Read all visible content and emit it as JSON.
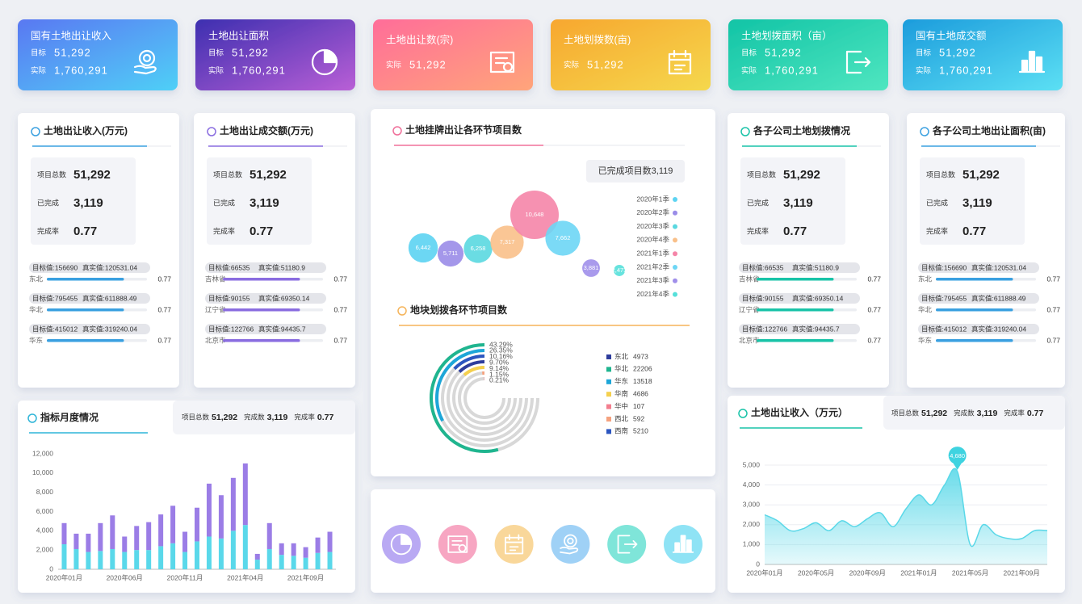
{
  "cards": [
    {
      "title": "国有土地出让收入",
      "rows": [
        {
          "label": "目标",
          "value": "51,292"
        },
        {
          "label": "实际",
          "value": "1,760,291"
        }
      ]
    },
    {
      "title": "土地出让面积",
      "rows": [
        {
          "label": "目标",
          "value": "51,292"
        },
        {
          "label": "实际",
          "value": "1,760,291"
        }
      ]
    },
    {
      "title": "土地出让数(宗)",
      "rows": [
        {
          "label": "实际",
          "value": "51,292"
        }
      ]
    },
    {
      "title": "土地划拨数(亩)",
      "rows": [
        {
          "label": "实际",
          "value": "51,292"
        }
      ]
    },
    {
      "title": "土地划拨面积（亩）",
      "rows": [
        {
          "label": "目标",
          "value": "51,292"
        },
        {
          "label": "实际",
          "value": "1,760,291"
        }
      ]
    },
    {
      "title": "国有土地成交额",
      "rows": [
        {
          "label": "目标",
          "value": "51,292"
        },
        {
          "label": "实际",
          "value": "1,760,291"
        }
      ]
    }
  ],
  "panels": [
    {
      "title": "土地出让收入(万元)",
      "color": "#3aa0e0",
      "stats": [
        {
          "label": "项目总数",
          "value": "51,292"
        },
        {
          "label": "已完成",
          "value": "3,119"
        },
        {
          "label": "完成率",
          "value": "0.77"
        }
      ],
      "regions": [
        {
          "target": "目标值:156690",
          "actual": "真实值:120531.04",
          "name": "东北",
          "ratio": 0.77
        },
        {
          "target": "目标值:795455",
          "actual": "真实值:611888.49",
          "name": "华北",
          "ratio": 0.77
        },
        {
          "target": "目标值:415012",
          "actual": "真实值:319240.04",
          "name": "华东",
          "ratio": 0.77
        }
      ]
    },
    {
      "title": "土地出让成交额(万元)",
      "color": "#8a6de0",
      "stats": [
        {
          "label": "项目总数",
          "value": "51,292"
        },
        {
          "label": "已完成",
          "value": "3,119"
        },
        {
          "label": "完成率",
          "value": "0.77"
        }
      ],
      "regions": [
        {
          "target": "目标值:66535",
          "actual": "真实值:51180.9",
          "name": "吉林省",
          "ratio": 0.77
        },
        {
          "target": "目标值:90155",
          "actual": "真实值:69350.14",
          "name": "辽宁省",
          "ratio": 0.77
        },
        {
          "target": "目标值:122766",
          "actual": "真实值:94435.7",
          "name": "北京市",
          "ratio": 0.77
        }
      ]
    },
    {
      "title": "各子公司土地划拨情况",
      "color": "#19c3a8",
      "stats": [
        {
          "label": "项目总数",
          "value": "51,292"
        },
        {
          "label": "已完成",
          "value": "3,119"
        },
        {
          "label": "完成率",
          "value": "0.77"
        }
      ],
      "regions": [
        {
          "target": "目标值:66535",
          "actual": "真实值:51180.9",
          "name": "吉林省",
          "ratio": 0.77
        },
        {
          "target": "目标值:90155",
          "actual": "真实值:69350.14",
          "name": "辽宁省",
          "ratio": 0.77
        },
        {
          "target": "目标值:122766",
          "actual": "真实值:94435.7",
          "name": "北京市",
          "ratio": 0.77
        }
      ]
    },
    {
      "title": "各子公司土地出让面积(亩)",
      "color": "#3aa0e0",
      "stats": [
        {
          "label": "项目总数",
          "value": "51,292"
        },
        {
          "label": "已完成",
          "value": "3,119"
        },
        {
          "label": "完成率",
          "value": "0.77"
        }
      ],
      "regions": [
        {
          "target": "目标值:156690",
          "actual": "真实值:120531.04",
          "name": "东北",
          "ratio": 0.77
        },
        {
          "target": "目标值:795455",
          "actual": "真实值:611888.49",
          "name": "华北",
          "ratio": 0.77
        },
        {
          "target": "目标值:415012",
          "actual": "真实值:319240.04",
          "name": "华东",
          "ratio": 0.77
        }
      ]
    }
  ],
  "chart_data": [
    {
      "type": "bubble",
      "title": "土地挂牌出让各环节项目数",
      "badge": "已完成项目数3,119",
      "categories": [
        "2020年1季",
        "2020年2季",
        "2020年3季",
        "2020年4季",
        "2021年1季",
        "2021年2季",
        "2021年3季",
        "2021年4季"
      ],
      "values": [
        6442,
        5711,
        6258,
        7317,
        10648,
        7662,
        3881,
        2473
      ],
      "value_labels": [
        "6,442",
        "5,711",
        "6,258",
        "7,317",
        "10,648",
        "7,662",
        "3,881",
        "2,473"
      ],
      "colors": [
        "#5cd3f2",
        "#9a8ce8",
        "#5ad8e0",
        "#f9c08a",
        "#f585a8",
        "#6dd6f5",
        "#a08fea",
        "#56e0da"
      ]
    },
    {
      "type": "radial_bar",
      "title": "地块划拨各环节项目数",
      "categories": [
        "东北",
        "华北",
        "华东",
        "华南",
        "华中",
        "西北",
        "西南"
      ],
      "values": [
        4973,
        22206,
        13518,
        4686,
        107,
        592,
        5210
      ],
      "colors": [
        "#2e3d9c",
        "#1fb58f",
        "#1da6d8",
        "#f5d04e",
        "#f37e8e",
        "#f5a27f",
        "#2c56c0"
      ],
      "rings": [
        {
          "percent": 43.29,
          "label": "43.29%",
          "color": "#1fb58f"
        },
        {
          "percent": 26.35,
          "label": "26.35%",
          "color": "#1da6d8"
        },
        {
          "percent": 10.16,
          "label": "10.16%",
          "color": "#2c56c0"
        },
        {
          "percent": 9.7,
          "label": "9.70%",
          "color": "#2e3d9c"
        },
        {
          "percent": 9.14,
          "label": "9.14%",
          "color": "#f5d04e"
        },
        {
          "percent": 1.15,
          "label": "1.15%",
          "color": "#f5a27f"
        },
        {
          "percent": 0.21,
          "label": "0.21%",
          "color": "#f37e8e"
        }
      ]
    },
    {
      "type": "bar",
      "stacked": true,
      "title": "指标月度情况",
      "stats": [
        {
          "label": "项目总数",
          "value": "51,292"
        },
        {
          "label": "完成数",
          "value": "3,119"
        },
        {
          "label": "完成率",
          "value": "0.77"
        }
      ],
      "categories": [
        "2020年01月",
        null,
        null,
        null,
        null,
        "2020年06月",
        null,
        null,
        null,
        null,
        "2020年11月",
        null,
        null,
        null,
        null,
        "2021年04月",
        null,
        null,
        null,
        null,
        "2021年09月",
        null,
        null
      ],
      "series": [
        {
          "color": "#5ad8ea",
          "values": [
            2600,
            2100,
            1800,
            1900,
            2100,
            1800,
            2000,
            2000,
            2400,
            2700,
            1800,
            2900,
            3400,
            3200,
            4000,
            4600,
            1000,
            2100,
            1500,
            1400,
            1200,
            1700,
            1800
          ]
        },
        {
          "color": "#9b7de6",
          "values": [
            2200,
            1600,
            1900,
            2900,
            3500,
            1600,
            2500,
            2900,
            3300,
            3900,
            2100,
            3500,
            5500,
            4500,
            5500,
            6400,
            600,
            2700,
            1200,
            1300,
            1100,
            1600,
            2100
          ]
        }
      ],
      "ylim": [
        0,
        12000
      ],
      "yticks": [
        0,
        {
          "value": 2000,
          "label": "2,000"
        },
        {
          "value": 4000,
          "label": "4,000"
        },
        {
          "value": 6000,
          "label": "6,000"
        },
        {
          "value": 8000,
          "label": "8,000"
        },
        {
          "value": 10000,
          "label": "10,000"
        },
        {
          "value": 12000,
          "label": "12,000"
        }
      ],
      "grid": false
    },
    {
      "type": "area",
      "title": "土地出让收入（万元）",
      "stats": [
        {
          "label": "项目总数",
          "value": "51,292"
        },
        {
          "label": "完成数",
          "value": "3,119"
        },
        {
          "label": "完成率",
          "value": "0.77"
        }
      ],
      "categories": [
        "2020年01月",
        null,
        null,
        null,
        "2020年05月",
        null,
        null,
        null,
        "2020年09月",
        null,
        null,
        null,
        "2021年01月",
        null,
        null,
        null,
        "2021年05月",
        null,
        null,
        null,
        "2021年09月",
        null,
        null
      ],
      "values": [
        2500,
        2200,
        1700,
        1800,
        2100,
        1700,
        2200,
        1900,
        2300,
        2600,
        1900,
        2800,
        3500,
        3000,
        4000,
        4680,
        1000,
        2000,
        1500,
        1300,
        1300,
        1700,
        1700
      ],
      "value_labels": [
        null,
        null,
        null,
        null,
        null,
        null,
        null,
        null,
        null,
        null,
        null,
        null,
        null,
        null,
        null,
        "4,680",
        null,
        null,
        null,
        null,
        null,
        null,
        null
      ],
      "color": "#5ad8e8",
      "ylim": [
        0,
        5000
      ],
      "yticks": [
        0,
        {
          "value": 1000,
          "label": "1,000"
        },
        {
          "value": 2000,
          "label": "2,000"
        },
        {
          "value": 3000,
          "label": "3,000"
        },
        {
          "value": 4000,
          "label": "4,000"
        },
        {
          "value": 5000,
          "label": "5,000"
        }
      ],
      "grid": true
    }
  ]
}
